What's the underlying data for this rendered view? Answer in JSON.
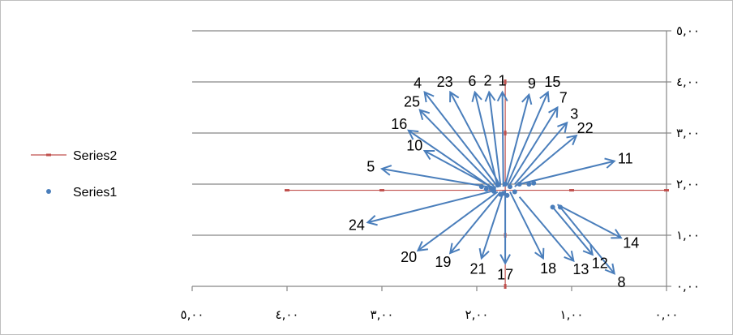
{
  "chart_data": {
    "type": "scatter",
    "x_axis": {
      "min": 0,
      "max": 5,
      "reversed": true,
      "ticks": [
        5,
        4,
        3,
        2,
        1,
        0
      ],
      "tick_labels": [
        "٥,٠٠",
        "٤,٠٠",
        "٣,٠٠",
        "٢,٠٠",
        "١,٠٠",
        "٠,٠٠"
      ]
    },
    "y_axis": {
      "min": 0,
      "max": 5,
      "position": "right",
      "ticks": [
        0,
        1,
        2,
        3,
        4,
        5
      ],
      "tick_labels": [
        "٠,٠٠",
        "١,٠٠",
        "٢,٠٠",
        "٣,٠٠",
        "٤,٠٠",
        "٥,٠٠"
      ]
    },
    "grid": "horizontal",
    "legend": {
      "position": "left",
      "entries": [
        "Series2",
        "Series1"
      ]
    },
    "colors": {
      "series1": "#4a7ebb",
      "series2": "#c0504d",
      "grid": "#868686"
    },
    "series": [
      {
        "name": "Series2",
        "style": "error-bar-cross",
        "hline": {
          "y": 1.88,
          "x_from": 4.0,
          "x_to": 0.0
        },
        "vline": {
          "x": 1.7,
          "y_from": 0.0,
          "y_to": 4.0
        }
      },
      {
        "name": "Series1",
        "origins": [
          [
            1.78,
            1.98
          ],
          [
            1.7,
            2.0
          ],
          [
            1.65,
            1.95
          ],
          [
            1.55,
            2.0
          ],
          [
            1.45,
            2.0
          ],
          [
            1.4,
            2.02
          ],
          [
            1.9,
            1.9
          ],
          [
            1.75,
            1.8
          ],
          [
            1.6,
            1.85
          ],
          [
            1.2,
            1.55
          ],
          [
            1.12,
            1.55
          ],
          [
            1.85,
            1.92
          ],
          [
            1.82,
            1.86
          ],
          [
            1.95,
            1.95
          ],
          [
            1.68,
            1.78
          ],
          [
            1.72,
            1.82
          ]
        ],
        "vectors": [
          {
            "label": "1",
            "from": [
              1.72,
              1.95
            ],
            "to": [
              1.73,
              3.8
            ]
          },
          {
            "label": "2",
            "from": [
              1.75,
              1.98
            ],
            "to": [
              1.87,
              3.8
            ]
          },
          {
            "label": "3",
            "from": [
              1.6,
              2.0
            ],
            "to": [
              1.05,
              3.2
            ]
          },
          {
            "label": "4",
            "from": [
              1.78,
              1.95
            ],
            "to": [
              2.55,
              3.8
            ]
          },
          {
            "label": "5",
            "from": [
              1.8,
              1.92
            ],
            "to": [
              3.0,
              2.3
            ]
          },
          {
            "label": "6",
            "from": [
              1.78,
              1.95
            ],
            "to": [
              2.02,
              3.8
            ]
          },
          {
            "label": "7",
            "from": [
              1.65,
              2.0
            ],
            "to": [
              1.15,
              3.5
            ]
          },
          {
            "label": "8",
            "from": [
              1.12,
              1.55
            ],
            "to": [
              0.55,
              0.25
            ]
          },
          {
            "label": "9",
            "from": [
              1.7,
              1.98
            ],
            "to": [
              1.45,
              3.75
            ]
          },
          {
            "label": "10",
            "from": [
              1.8,
              1.9
            ],
            "to": [
              2.55,
              2.65
            ]
          },
          {
            "label": "11",
            "from": [
              1.55,
              2.0
            ],
            "to": [
              0.55,
              2.45
            ]
          },
          {
            "label": "12",
            "from": [
              1.2,
              1.55
            ],
            "to": [
              0.78,
              0.62
            ]
          },
          {
            "label": "13",
            "from": [
              1.55,
              1.75
            ],
            "to": [
              0.98,
              0.5
            ]
          },
          {
            "label": "14",
            "from": [
              1.15,
              1.6
            ],
            "to": [
              0.48,
              0.95
            ]
          },
          {
            "label": "15",
            "from": [
              1.68,
              1.98
            ],
            "to": [
              1.25,
              3.8
            ]
          },
          {
            "label": "16",
            "from": [
              1.8,
              1.88
            ],
            "to": [
              2.72,
              3.05
            ]
          },
          {
            "label": "17",
            "from": [
              1.7,
              1.88
            ],
            "to": [
              1.7,
              0.45
            ]
          },
          {
            "label": "18",
            "from": [
              1.65,
              1.85
            ],
            "to": [
              1.3,
              0.55
            ]
          },
          {
            "label": "19",
            "from": [
              1.75,
              1.85
            ],
            "to": [
              2.28,
              0.65
            ]
          },
          {
            "label": "20",
            "from": [
              1.78,
              1.85
            ],
            "to": [
              2.62,
              0.7
            ]
          },
          {
            "label": "21",
            "from": [
              1.72,
              1.85
            ],
            "to": [
              1.95,
              0.55
            ]
          },
          {
            "label": "22",
            "from": [
              1.6,
              1.95
            ],
            "to": [
              0.95,
              2.95
            ]
          },
          {
            "label": "23",
            "from": [
              1.75,
              1.95
            ],
            "to": [
              2.28,
              3.8
            ]
          },
          {
            "label": "24",
            "from": [
              1.8,
              1.88
            ],
            "to": [
              3.15,
              1.25
            ]
          },
          {
            "label": "25",
            "from": [
              1.8,
              1.92
            ],
            "to": [
              2.6,
              3.45
            ]
          }
        ]
      }
    ]
  }
}
